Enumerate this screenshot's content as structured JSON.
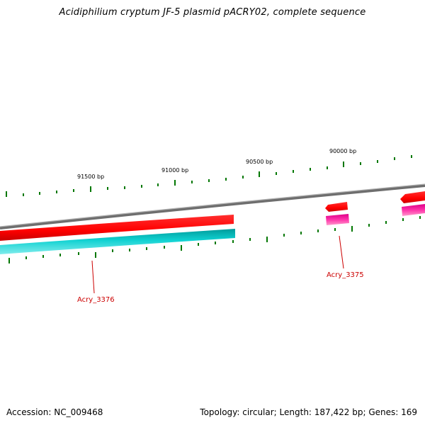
{
  "title": "Acidiphilium cryptum JF-5 plasmid pACRY02, complete sequence",
  "footer": {
    "accession": "Accession: NC_009468",
    "summary": "Topology: circular; Length: 187,422 bp; Genes: 169"
  },
  "ruler": {
    "labels": [
      "91500 bp",
      "91000 bp",
      "90500 bp",
      "90000 bp"
    ]
  },
  "genes": {
    "labels": [
      "Acry_3376",
      "Acry_3375"
    ]
  },
  "colors": {
    "backbone": "#808080",
    "forward_gene": "#ff0000",
    "reverse_gene_cds": "#00cccc",
    "reverse_gene_alt": "#ff33aa",
    "tick": "#007700",
    "gene_label": "#cc0000"
  }
}
